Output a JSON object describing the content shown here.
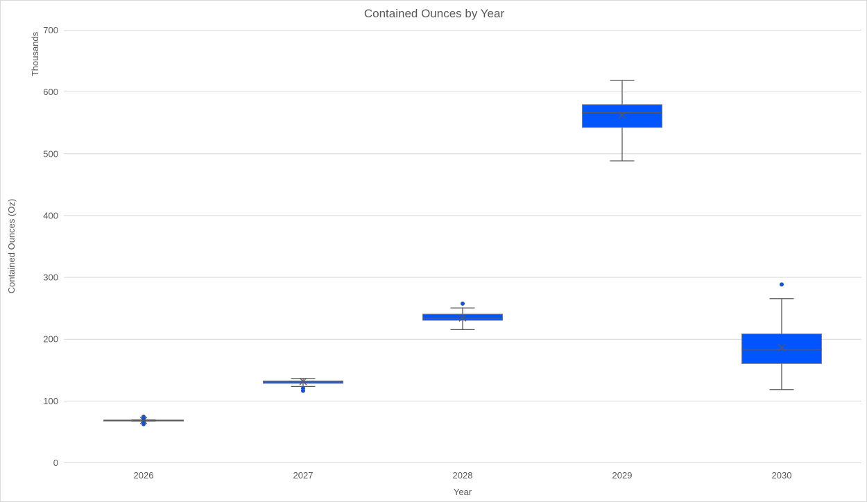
{
  "chart_data": {
    "type": "box",
    "title": "Contained Ounces by Year",
    "xlabel": "Year",
    "ylabel": "Contained Ounces (Oz)",
    "y_units_label": "Thousands",
    "ylim": [
      0,
      700
    ],
    "yticks": [
      0,
      100,
      200,
      300,
      400,
      500,
      600,
      700
    ],
    "grid": true,
    "legend": "none",
    "colors": {
      "box_fill": "#0055FF",
      "lines": "#595959",
      "grid": "#D9D9D9",
      "outlier": "#0055FF",
      "text": "#595959"
    },
    "categories": [
      "2026",
      "2027",
      "2028",
      "2029",
      "2030"
    ],
    "series": [
      {
        "category": "2026",
        "min": 67,
        "q1": 67.5,
        "median": 68,
        "q3": 68.7,
        "max": 69,
        "mean": 68,
        "outliers": [
          74,
          72,
          64,
          62
        ]
      },
      {
        "category": "2027",
        "min": 123,
        "q1": 128,
        "median": 130,
        "q3": 132,
        "max": 136,
        "mean": 131,
        "outliers": [
          120,
          116
        ]
      },
      {
        "category": "2028",
        "min": 215,
        "q1": 230,
        "median": 233,
        "q3": 240,
        "max": 250,
        "mean": 234,
        "outliers": [
          257
        ]
      },
      {
        "category": "2029",
        "min": 488,
        "q1": 542,
        "median": 566,
        "q3": 579,
        "max": 618,
        "mean": 562,
        "outliers": []
      },
      {
        "category": "2030",
        "min": 118,
        "q1": 160,
        "median": 183,
        "q3": 208,
        "max": 265,
        "mean": 186,
        "outliers": [
          288
        ]
      }
    ]
  }
}
